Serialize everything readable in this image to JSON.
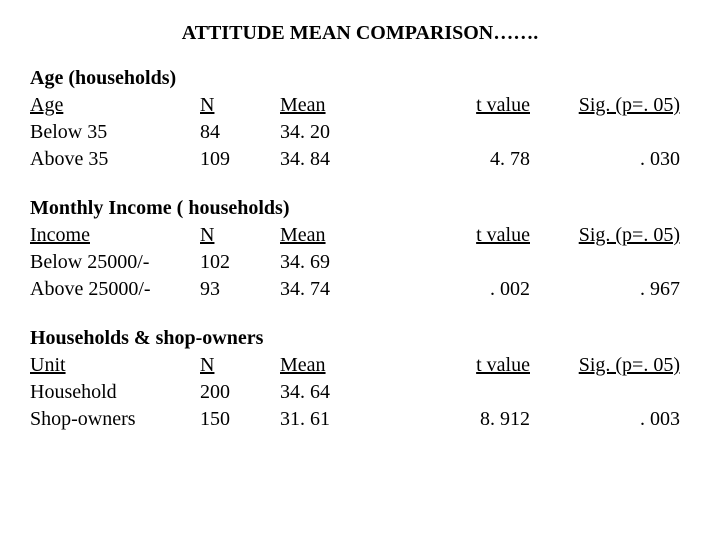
{
  "title": "ATTITUDE MEAN COMPARISON…….",
  "sections": [
    {
      "header": "Age (households)",
      "col_labels": [
        "Age",
        "N",
        " Mean",
        "t  value",
        "Sig. (p=. 05)"
      ],
      "rows": [
        {
          "label": "Below 35",
          "n": "84",
          "mean": "34. 20",
          "t": "",
          "sig": ""
        },
        {
          "label": "Above 35",
          "n": "109",
          "mean": "34. 84",
          "t": "4. 78",
          "sig": ". 030"
        }
      ]
    },
    {
      "header": "Monthly Income ( households)",
      "col_labels": [
        "Income",
        "N",
        "Mean",
        "t value",
        "Sig. (p=. 05)"
      ],
      "rows": [
        {
          "label": "Below 25000/-",
          "n": "102",
          "mean": "34. 69",
          "t": "",
          "sig": ""
        },
        {
          "label": "Above 25000/-",
          "n": " 93",
          "mean": "34. 74",
          "t": ". 002",
          "sig": ". 967"
        }
      ]
    },
    {
      "header": "Households & shop-owners",
      "col_labels": [
        "Unit",
        "N",
        "Mean",
        "t value",
        "Sig. (p=. 05)"
      ],
      "rows": [
        {
          "label": "Household",
          "n": "200",
          "mean": "34. 64",
          "t": "",
          "sig": ""
        },
        {
          "label": "Shop-owners",
          "n": "150",
          "mean": "31. 61",
          "t": "8. 912",
          "sig": ". 003"
        }
      ]
    }
  ]
}
